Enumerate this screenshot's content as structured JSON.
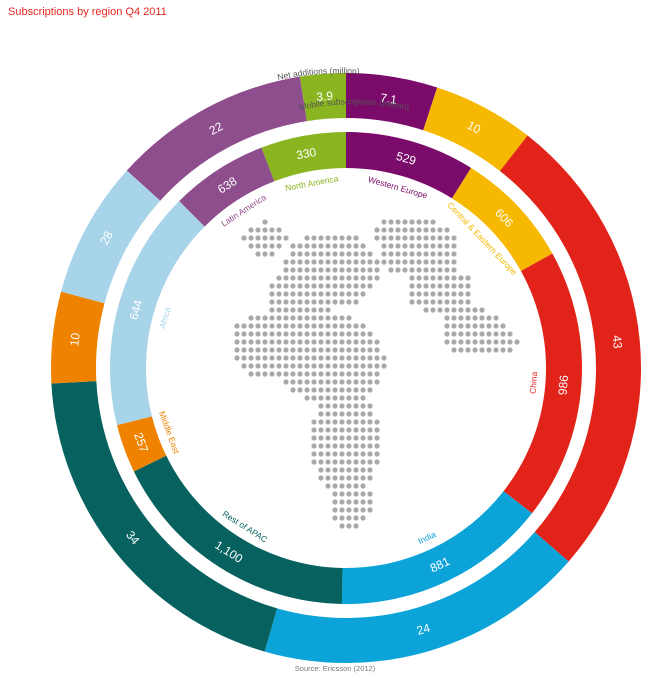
{
  "title": "Subscriptions by region Q4 2011",
  "source": "Source: Ericsson (2012)",
  "chart_data": {
    "type": "donut",
    "title": "Subscriptions by region Q4 2011",
    "rings": [
      {
        "name": "Net additions (million)",
        "label": "Net additions (million)"
      },
      {
        "name": "Mobile subscriptions (million)",
        "label": "Mobile subscriptions (million)"
      }
    ],
    "regions": [
      {
        "region": "Latin America",
        "net_additions": 22,
        "net_additions_label": "22",
        "subscriptions": 638,
        "subscriptions_label": "638",
        "color": "#8e4d8c"
      },
      {
        "region": "North America",
        "net_additions": 3.9,
        "net_additions_label": "3.9",
        "subscriptions": 330,
        "subscriptions_label": "330",
        "color": "#8ab520"
      },
      {
        "region": "Western Europe",
        "net_additions": 7.1,
        "net_additions_label": "7.1",
        "subscriptions": 529,
        "subscriptions_label": "529",
        "color": "#7a0b6a"
      },
      {
        "region": "Central & Eastern Europe",
        "net_additions": 10,
        "net_additions_label": "10",
        "subscriptions": 606,
        "subscriptions_label": "606",
        "color": "#f6b800"
      },
      {
        "region": "China",
        "net_additions": 43,
        "net_additions_label": "43",
        "subscriptions": 986,
        "subscriptions_label": "986",
        "color": "#e2231a"
      },
      {
        "region": "India",
        "net_additions": 24,
        "net_additions_label": "24",
        "subscriptions": 881,
        "subscriptions_label": "881",
        "color": "#0ca3d9"
      },
      {
        "region": "Rest of APAC",
        "net_additions": 34,
        "net_additions_label": "34",
        "subscriptions": 1100,
        "subscriptions_label": "1,100",
        "color": "#07625f"
      },
      {
        "region": "Middle East",
        "net_additions": 10,
        "net_additions_label": "10",
        "subscriptions": 257,
        "subscriptions_label": "257",
        "color": "#ef8300"
      },
      {
        "region": "Africa",
        "net_additions": 28,
        "net_additions_label": "28",
        "subscriptions": 644,
        "subscriptions_label": "644",
        "color": "#a8d4ea"
      }
    ],
    "center_image": "world-globe-dot-map-icon"
  }
}
